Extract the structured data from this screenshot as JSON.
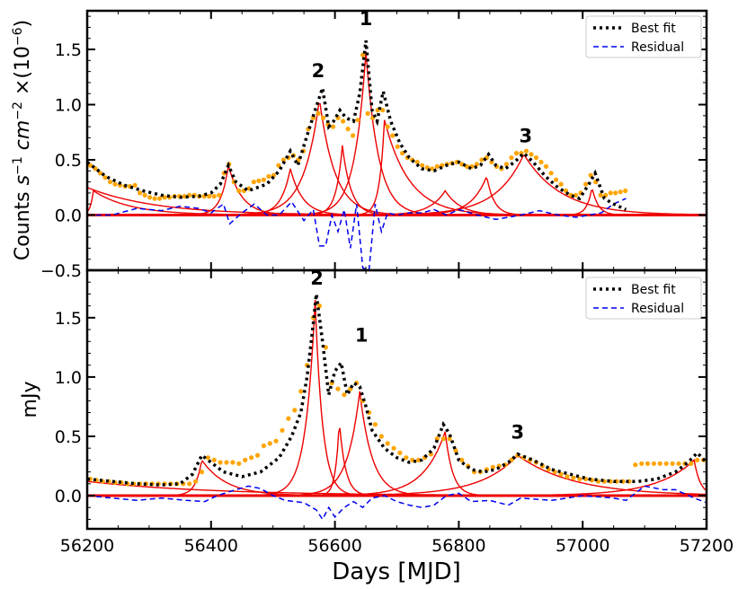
{
  "figure": {
    "xlabel": "Days [MJD]",
    "xticks": [
      "56200",
      "56400",
      "56600",
      "56800",
      "57000",
      "57200"
    ]
  },
  "chart_data": [
    {
      "type": "line",
      "ylabel_prefix": "Counts ",
      "ylabel_s": "s",
      "ylabel_s_exp": "−1",
      "ylabel_cm": "cm",
      "ylabel_cm_exp": "−2",
      "ylabel_times": " ×(10",
      "ylabel_exp": "−6",
      "ylabel_close": ")",
      "xlim": [
        56200,
        57200
      ],
      "ylim": [
        -0.5,
        1.85
      ],
      "yticks": [
        -0.5,
        0.0,
        0.5,
        1.0,
        1.5
      ],
      "ytick_labels": [
        "−0.5",
        "0.0",
        "0.5",
        "1.0",
        "1.5"
      ],
      "legend": {
        "placement": "top-right",
        "entries": [
          "Best fit",
          "Residual"
        ]
      },
      "annotations": [
        {
          "text": "1",
          "x": 56650,
          "y": 1.72
        },
        {
          "text": "2",
          "x": 56573,
          "y": 1.25
        },
        {
          "text": "3",
          "x": 56908,
          "y": 0.66
        }
      ],
      "series": [
        {
          "name": "Best fit",
          "style": "dotted",
          "color": "#000000",
          "x": [
            56200,
            56230,
            56260,
            56290,
            56320,
            56350,
            56380,
            56400,
            56415,
            56428,
            56440,
            56460,
            56490,
            56510,
            56528,
            56540,
            56555,
            56568,
            56580,
            56590,
            56598,
            56608,
            56618,
            56630,
            56640,
            56650,
            56660,
            56668,
            56678,
            56690,
            56705,
            56720,
            56740,
            56760,
            56780,
            56800,
            56820,
            56835,
            56848,
            56860,
            56875,
            56890,
            56905,
            56920,
            56940,
            56960,
            56980,
            56995,
            57010,
            57020,
            57035,
            57050,
            57070
          ],
          "y": [
            0.48,
            0.35,
            0.27,
            0.22,
            0.18,
            0.16,
            0.17,
            0.2,
            0.28,
            0.45,
            0.3,
            0.22,
            0.28,
            0.4,
            0.58,
            0.45,
            0.72,
            0.95,
            1.15,
            0.8,
            0.85,
            0.95,
            0.88,
            0.85,
            1.1,
            1.58,
            0.95,
            0.85,
            1.12,
            0.85,
            0.65,
            0.52,
            0.42,
            0.4,
            0.45,
            0.48,
            0.42,
            0.45,
            0.55,
            0.45,
            0.42,
            0.48,
            0.56,
            0.48,
            0.35,
            0.25,
            0.18,
            0.15,
            0.28,
            0.38,
            0.15,
            0.1,
            0.05
          ]
        },
        {
          "name": "Residual",
          "style": "dashed",
          "color": "#0000ee",
          "x": [
            56200,
            56240,
            56280,
            56320,
            56350,
            56380,
            56400,
            56420,
            56430,
            56450,
            56470,
            56490,
            56510,
            56530,
            56550,
            56565,
            56575,
            56585,
            56595,
            56605,
            56615,
            56625,
            56635,
            56645,
            56655,
            56665,
            56675,
            56685,
            56700,
            56720,
            56740,
            56760,
            56780,
            56800,
            56830,
            56860,
            56900,
            56930,
            56960,
            56990,
            57010,
            57030,
            57050,
            57070
          ],
          "y": [
            0.0,
            0.0,
            0.06,
            0.04,
            0.08,
            0.06,
            0.02,
            0.1,
            -0.08,
            0.02,
            0.1,
            0.0,
            0.0,
            0.12,
            -0.05,
            0.05,
            -0.28,
            -0.28,
            0.0,
            -0.15,
            0.05,
            -0.3,
            0.1,
            -0.48,
            -0.5,
            0.1,
            -0.15,
            0.02,
            0.0,
            0.02,
            0.02,
            0.05,
            0.0,
            0.05,
            0.0,
            -0.04,
            0.0,
            0.04,
            0.0,
            -0.02,
            0.0,
            0.02,
            0.1,
            0.15
          ]
        },
        {
          "name": "",
          "style": "markers",
          "color": "#ffa500",
          "x": [
            56205,
            56213,
            56221,
            56229,
            56237,
            56245,
            56253,
            56261,
            56269,
            56277,
            56285,
            56293,
            56301,
            56309,
            56317,
            56325,
            56333,
            56341,
            56349,
            56357,
            56365,
            56373,
            56381,
            56389,
            56397,
            56405,
            56413,
            56421,
            56429,
            56437,
            56445,
            56453,
            56461,
            56469,
            56477,
            56485,
            56493,
            56501,
            56509,
            56517,
            56525,
            56533,
            56541,
            56549,
            56557,
            56565,
            56573,
            56581,
            56589,
            56597,
            56605,
            56613,
            56621,
            56629,
            56637,
            56645,
            56653,
            56661,
            56669,
            56677,
            56685,
            56693,
            56701,
            56709,
            56717,
            56725,
            56733,
            56741,
            56749,
            56757,
            56765,
            56773,
            56781,
            56789,
            56797,
            56805,
            56813,
            56821,
            56829,
            56837,
            56845,
            56853,
            56861,
            56869,
            56877,
            56885,
            56893,
            56901,
            56909,
            56917,
            56925,
            56933,
            56941,
            56949,
            56957,
            56965,
            56973,
            56981,
            56989,
            56997,
            57005,
            57013,
            57021,
            57029,
            57037,
            57045,
            57053,
            57061,
            57069
          ],
          "y": [
            0.45,
            0.42,
            0.38,
            0.34,
            0.3,
            0.28,
            0.27,
            0.26,
            0.26,
            0.27,
            0.2,
            0.18,
            0.16,
            0.15,
            0.15,
            0.16,
            0.16,
            0.17,
            0.17,
            0.17,
            0.18,
            0.18,
            0.17,
            0.17,
            0.17,
            0.17,
            0.18,
            0.38,
            0.46,
            0.3,
            0.22,
            0.22,
            0.24,
            0.3,
            0.31,
            0.32,
            0.35,
            0.36,
            0.45,
            0.5,
            0.52,
            0.54,
            0.5,
            0.58,
            0.78,
            0.88,
            0.92,
            0.88,
            0.82,
            0.8,
            0.88,
            0.85,
            0.78,
            0.72,
            0.86,
            1.45,
            0.92,
            0.88,
            0.95,
            0.95,
            0.8,
            0.72,
            0.62,
            0.56,
            0.52,
            0.5,
            0.48,
            0.45,
            0.43,
            0.42,
            0.44,
            0.45,
            0.46,
            0.47,
            0.48,
            0.46,
            0.44,
            0.44,
            0.46,
            0.5,
            0.52,
            0.48,
            0.44,
            0.42,
            0.46,
            0.52,
            0.56,
            0.56,
            0.58,
            0.55,
            0.52,
            0.48,
            0.44,
            0.38,
            0.32,
            0.28,
            0.22,
            0.18,
            0.18,
            0.2,
            0.28,
            0.36,
            0.3,
            0.18,
            0.18,
            0.2,
            0.2,
            0.21,
            0.22
          ]
        }
      ],
      "components": [
        {
          "peak": 56428,
          "amp": 0.45,
          "rise": 12,
          "decay": 22
        },
        {
          "peak": 56528,
          "amp": 0.42,
          "rise": 15,
          "decay": 20
        },
        {
          "peak": 56575,
          "amp": 1.05,
          "rise": 25,
          "decay": 25
        },
        {
          "peak": 56612,
          "amp": 0.63,
          "rise": 10,
          "decay": 14
        },
        {
          "peak": 56650,
          "amp": 1.48,
          "rise": 18,
          "decay": 20
        },
        {
          "peak": 56680,
          "amp": 0.86,
          "rise": 8,
          "decay": 40
        },
        {
          "peak": 56778,
          "amp": 0.22,
          "rise": 25,
          "decay": 25
        },
        {
          "peak": 56845,
          "amp": 0.35,
          "rise": 25,
          "decay": 12
        },
        {
          "peak": 56905,
          "amp": 0.55,
          "rise": 45,
          "decay": 60
        },
        {
          "peak": 57015,
          "amp": 0.25,
          "rise": 8,
          "decay": 10
        },
        {
          "peak": 56210,
          "amp": 0.22,
          "rise": 5,
          "decay": 60
        },
        {
          "peak": 56200,
          "amp": 0.25,
          "rise": 5,
          "decay": 110
        }
      ]
    },
    {
      "type": "line",
      "ylabel": "mJy",
      "xlim": [
        56200,
        57200
      ],
      "ylim": [
        -0.28,
        1.9
      ],
      "yticks": [
        0.0,
        0.5,
        1.0,
        1.5
      ],
      "ytick_labels": [
        "0.0",
        "0.5",
        "1.0",
        "1.5"
      ],
      "legend": {
        "placement": "top-right",
        "entries": [
          "Best fit",
          "Residual"
        ]
      },
      "annotations": [
        {
          "text": "2",
          "x": 56571,
          "y": 1.78
        },
        {
          "text": "1",
          "x": 56643,
          "y": 1.3
        },
        {
          "text": "3",
          "x": 56895,
          "y": 0.48
        }
      ],
      "series": [
        {
          "name": "Best fit",
          "style": "dotted",
          "color": "#000000",
          "x": [
            56200,
            56240,
            56280,
            56320,
            56350,
            56370,
            56385,
            56400,
            56420,
            56450,
            56480,
            56510,
            56530,
            56545,
            56555,
            56565,
            56570,
            56580,
            56590,
            56600,
            56610,
            56620,
            56630,
            56640,
            56650,
            56660,
            56680,
            56700,
            56720,
            56740,
            56760,
            56775,
            56785,
            56800,
            56820,
            56840,
            56860,
            56880,
            56895,
            56920,
            56950,
            56980,
            57010,
            57050,
            57090,
            57120,
            57150,
            57170,
            57185,
            57200
          ],
          "y": [
            0.14,
            0.12,
            0.1,
            0.09,
            0.1,
            0.18,
            0.34,
            0.28,
            0.2,
            0.16,
            0.2,
            0.32,
            0.5,
            0.7,
            1.0,
            1.45,
            1.7,
            1.3,
            0.85,
            1.05,
            1.12,
            0.85,
            0.95,
            0.92,
            0.75,
            0.55,
            0.4,
            0.32,
            0.28,
            0.3,
            0.4,
            0.6,
            0.52,
            0.3,
            0.22,
            0.2,
            0.22,
            0.28,
            0.35,
            0.3,
            0.22,
            0.18,
            0.14,
            0.12,
            0.12,
            0.14,
            0.2,
            0.28,
            0.36,
            0.28
          ]
        },
        {
          "name": "Residual",
          "style": "dashed",
          "color": "#0000ee",
          "x": [
            56200,
            56240,
            56280,
            56320,
            56360,
            56390,
            56410,
            56440,
            56460,
            56480,
            56500,
            56520,
            56550,
            56570,
            56580,
            56590,
            56600,
            56615,
            56630,
            56645,
            56660,
            56680,
            56700,
            56720,
            56740,
            56760,
            56780,
            56800,
            56820,
            56850,
            56880,
            56900,
            56950,
            57000,
            57050,
            57070,
            57100,
            57130,
            57150,
            57180,
            57200
          ],
          "y": [
            0.0,
            -0.02,
            -0.04,
            -0.02,
            -0.04,
            -0.05,
            0.0,
            0.05,
            0.08,
            0.06,
            0.0,
            -0.04,
            -0.06,
            -0.12,
            -0.2,
            -0.1,
            -0.18,
            -0.1,
            -0.05,
            -0.1,
            -0.02,
            0.0,
            -0.05,
            -0.08,
            -0.1,
            -0.08,
            0.0,
            0.02,
            -0.05,
            -0.04,
            -0.08,
            -0.02,
            -0.04,
            0.0,
            -0.02,
            -0.04,
            0.08,
            0.05,
            0.05,
            -0.02,
            -0.06
          ]
        },
        {
          "name": "",
          "style": "markers",
          "color": "#ffa500",
          "x": [
            56205,
            56215,
            56225,
            56235,
            56245,
            56255,
            56265,
            56275,
            56285,
            56295,
            56305,
            56315,
            56325,
            56335,
            56345,
            56355,
            56365,
            56375,
            56385,
            56395,
            56405,
            56415,
            56425,
            56435,
            56445,
            56455,
            56465,
            56475,
            56485,
            56495,
            56505,
            56515,
            56525,
            56535,
            56545,
            56555,
            56565,
            56575,
            56585,
            56595,
            56605,
            56615,
            56625,
            56635,
            56645,
            56655,
            56665,
            56675,
            56685,
            56695,
            56705,
            56715,
            56725,
            56735,
            56745,
            56755,
            56765,
            56775,
            56785,
            56795,
            56805,
            56815,
            56825,
            56835,
            56845,
            56855,
            56865,
            56875,
            56885,
            56895,
            56905,
            56915,
            56925,
            56935,
            56945,
            56955,
            56965,
            56975,
            56985,
            56995,
            57005,
            57015,
            57025,
            57035,
            57045,
            57055,
            57065,
            57075,
            57085,
            57095,
            57105,
            57115,
            57125,
            57135,
            57145,
            57155,
            57165,
            57175,
            57185,
            57195
          ],
          "y": [
            0.14,
            0.13,
            0.12,
            0.12,
            0.11,
            0.11,
            0.1,
            0.1,
            0.1,
            0.1,
            0.1,
            0.1,
            0.1,
            0.1,
            0.1,
            0.1,
            0.1,
            0.12,
            0.2,
            0.32,
            0.3,
            0.28,
            0.28,
            0.28,
            0.27,
            0.3,
            0.32,
            0.34,
            0.42,
            0.44,
            0.46,
            0.55,
            0.65,
            0.72,
            0.88,
            1.1,
            1.5,
            1.6,
            1.25,
            0.95,
            0.9,
            0.85,
            0.9,
            0.95,
            0.8,
            0.7,
            0.6,
            0.5,
            0.44,
            0.4,
            0.36,
            0.32,
            0.3,
            0.3,
            0.32,
            0.35,
            0.48,
            0.48,
            0.48,
            0.38,
            0.3,
            0.25,
            0.2,
            0.2,
            0.22,
            0.24,
            0.25,
            0.26,
            0.3,
            0.34,
            0.32,
            0.3,
            0.28,
            0.25,
            0.22,
            0.2,
            0.18,
            0.16,
            0.15,
            0.14,
            0.14,
            0.13,
            0.12,
            0.12,
            0.12,
            0.12,
            0.12,
            0.12,
            0.26,
            0.27,
            0.27,
            0.27,
            0.27,
            0.27,
            0.27,
            0.27,
            0.27,
            0.27,
            0.3,
            0.3
          ]
        }
      ],
      "components": [
        {
          "peak": 56385,
          "amp": 0.3,
          "rise": 10,
          "decay": 40
        },
        {
          "peak": 56568,
          "amp": 1.65,
          "rise": 15,
          "decay": 12
        },
        {
          "peak": 56607,
          "amp": 0.63,
          "rise": 6,
          "decay": 10
        },
        {
          "peak": 56640,
          "amp": 0.88,
          "rise": 20,
          "decay": 20
        },
        {
          "peak": 56778,
          "amp": 0.54,
          "rise": 35,
          "decay": 12
        },
        {
          "peak": 56895,
          "amp": 0.34,
          "rise": 60,
          "decay": 90
        },
        {
          "peak": 57180,
          "amp": 0.3,
          "rise": 60,
          "decay": 10
        },
        {
          "peak": 56200,
          "amp": 0.12,
          "rise": 5,
          "decay": 200
        }
      ]
    }
  ]
}
